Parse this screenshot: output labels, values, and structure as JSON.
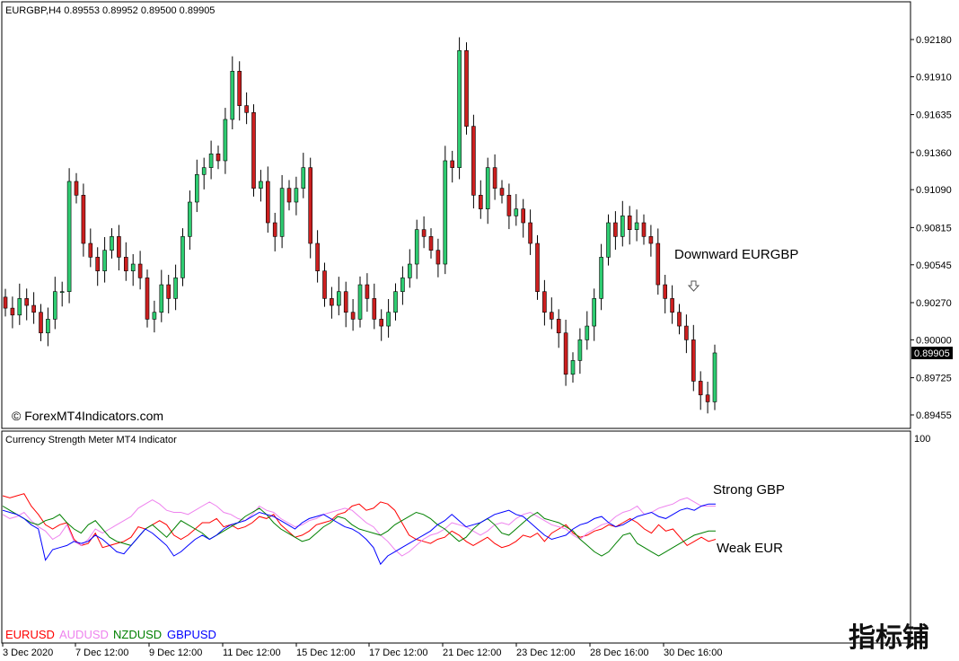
{
  "main_chart": {
    "symbol_header": "EURGBP,H4  0.89553 0.89952 0.89500 0.89905",
    "watermark": "© ForexMT4Indicators.com",
    "annotation": "Downward EURGBP",
    "arrow_icon": "down-arrow-icon",
    "current_price": "0.89905",
    "bull_color": "#2ecc71",
    "bear_color": "#cc1f1f",
    "y_ticks": [
      "0.92180",
      "0.91910",
      "0.91635",
      "0.91360",
      "0.91090",
      "0.90815",
      "0.90545",
      "0.90270",
      "0.90000",
      "0.89725",
      "0.89455"
    ]
  },
  "indicator": {
    "title": "Currency Strength Meter MT4 Indicator",
    "y_top_label": "100",
    "annotation_strong": "Strong GBP",
    "annotation_weak": "Weak EUR",
    "legend": [
      {
        "name": "EURUSD",
        "color": "#ff0000"
      },
      {
        "name": "AUDUSD",
        "color": "#ee82ee"
      },
      {
        "name": "NZDUSD",
        "color": "#008000"
      },
      {
        "name": "GBPUSD",
        "color": "#0000ff"
      }
    ]
  },
  "x_axis": {
    "labels": [
      "3 Dec 2020",
      "7 Dec 12:00",
      "9 Dec 12:00",
      "11 Dec 12:00",
      "15 Dec 12:00",
      "17 Dec 12:00",
      "21 Dec 12:00",
      "23 Dec 12:00",
      "28 Dec 16:00",
      "30 Dec 16:00"
    ]
  },
  "logo_text": "指标铺",
  "chart_data": {
    "type": "line",
    "title": "EURGBP,H4",
    "close_prices": [
      0.9023,
      0.9018,
      0.903,
      0.9025,
      0.902,
      0.9005,
      0.9015,
      0.9035,
      0.9035,
      0.9115,
      0.9105,
      0.907,
      0.906,
      0.905,
      0.9065,
      0.9075,
      0.906,
      0.905,
      0.9055,
      0.9045,
      0.9015,
      0.902,
      0.904,
      0.903,
      0.9045,
      0.9075,
      0.91,
      0.912,
      0.9125,
      0.9135,
      0.913,
      0.916,
      0.9195,
      0.917,
      0.9165,
      0.911,
      0.9115,
      0.9085,
      0.9075,
      0.911,
      0.91,
      0.911,
      0.9125,
      0.907,
      0.905,
      0.903,
      0.9025,
      0.9035,
      0.902,
      0.9015,
      0.904,
      0.903,
      0.9015,
      0.901,
      0.902,
      0.9035,
      0.9045,
      0.9055,
      0.908,
      0.9075,
      0.9065,
      0.9055,
      0.913,
      0.9125,
      0.921,
      0.9155,
      0.9105,
      0.9095,
      0.9125,
      0.911,
      0.9105,
      0.909,
      0.9095,
      0.9085,
      0.907,
      0.9035,
      0.902,
      0.9015,
      0.9005,
      0.8975,
      0.8985,
      0.9,
      0.901,
      0.903,
      0.906,
      0.9085,
      0.9075,
      0.909,
      0.908,
      0.9085,
      0.9075,
      0.907,
      0.904,
      0.903,
      0.902,
      0.901,
      0.9,
      0.897,
      0.896,
      0.8955,
      0.89905
    ],
    "series": [
      {
        "name": "EURUSD",
        "values": [
          71,
          70,
          71,
          72,
          66,
          62,
          57,
          55,
          57,
          58,
          50,
          47,
          48,
          53,
          46,
          47,
          48,
          49,
          51,
          56,
          55,
          57,
          59,
          57,
          52,
          50,
          52,
          55,
          58,
          58,
          60,
          56,
          57,
          55,
          56,
          58,
          61,
          60,
          62,
          57,
          54,
          51,
          52,
          54,
          57,
          58,
          59,
          62,
          63,
          66,
          67,
          64,
          65,
          68,
          67,
          64,
          58,
          52,
          50,
          49,
          48,
          50,
          51,
          54,
          52,
          49,
          47,
          49,
          51,
          48,
          46,
          47,
          49,
          52,
          51,
          53,
          49,
          53,
          55,
          57,
          53,
          51,
          52,
          54,
          55,
          57,
          56,
          58,
          60,
          58,
          55,
          53,
          57,
          54,
          55,
          51,
          47,
          49,
          51,
          49,
          50
        ]
      },
      {
        "name": "AUDUSD",
        "values": [
          62,
          60,
          61,
          63,
          59,
          56,
          54,
          50,
          52,
          57,
          49,
          47,
          50,
          55,
          53,
          55,
          57,
          59,
          61,
          65,
          67,
          69,
          67,
          64,
          63,
          63,
          62,
          64,
          66,
          68,
          66,
          63,
          62,
          60,
          59,
          62,
          66,
          64,
          63,
          60,
          58,
          56,
          57,
          59,
          60,
          62,
          63,
          64,
          65,
          64,
          61,
          58,
          56,
          52,
          49,
          45,
          42,
          44,
          47,
          50,
          52,
          53,
          55,
          58,
          57,
          56,
          54,
          52,
          54,
          57,
          58,
          57,
          60,
          62,
          63,
          61,
          59,
          57,
          56,
          55,
          52,
          50,
          53,
          55,
          57,
          58,
          61,
          63,
          64,
          66,
          62,
          63,
          65,
          66,
          67,
          69,
          70,
          68,
          66,
          66,
          66
        ]
      },
      {
        "name": "NZDUSD",
        "values": [
          66,
          64,
          62,
          60,
          58,
          57,
          59,
          60,
          62,
          58,
          55,
          53,
          57,
          59,
          55,
          51,
          49,
          48,
          47,
          51,
          55,
          57,
          54,
          51,
          55,
          59,
          57,
          55,
          53,
          50,
          52,
          54,
          56,
          58,
          61,
          63,
          65,
          62,
          58,
          55,
          53,
          51,
          49,
          50,
          53,
          56,
          58,
          61,
          60,
          57,
          55,
          54,
          53,
          52,
          54,
          57,
          59,
          61,
          63,
          62,
          60,
          57,
          55,
          52,
          49,
          51,
          55,
          58,
          60,
          57,
          53,
          52,
          55,
          58,
          61,
          63,
          60,
          59,
          58,
          56,
          54,
          50,
          47,
          44,
          42,
          44,
          48,
          52,
          53,
          48,
          46,
          44,
          42,
          44,
          46,
          48,
          50,
          52,
          53,
          54,
          54
        ]
      },
      {
        "name": "GBPUSD",
        "values": [
          64,
          63,
          62,
          60,
          57,
          55,
          40,
          45,
          46,
          47,
          49,
          48,
          49,
          52,
          50,
          47,
          44,
          43,
          47,
          51,
          55,
          53,
          50,
          47,
          42,
          44,
          47,
          50,
          52,
          50,
          52,
          55,
          57,
          58,
          59,
          61,
          63,
          62,
          61,
          59,
          57,
          55,
          58,
          60,
          61,
          62,
          60,
          58,
          56,
          55,
          53,
          50,
          46,
          38,
          42,
          44,
          46,
          48,
          50,
          52,
          54,
          57,
          59,
          62,
          59,
          56,
          57,
          58,
          60,
          62,
          63,
          64,
          62,
          61,
          58,
          55,
          52,
          50,
          51,
          52,
          55,
          57,
          58,
          60,
          61,
          58,
          56,
          57,
          59,
          61,
          62,
          63,
          61,
          60,
          62,
          64,
          65,
          64,
          66,
          67,
          67
        ]
      }
    ],
    "xlabel": "",
    "ylabel": "",
    "ylim": [
      0,
      100
    ]
  }
}
